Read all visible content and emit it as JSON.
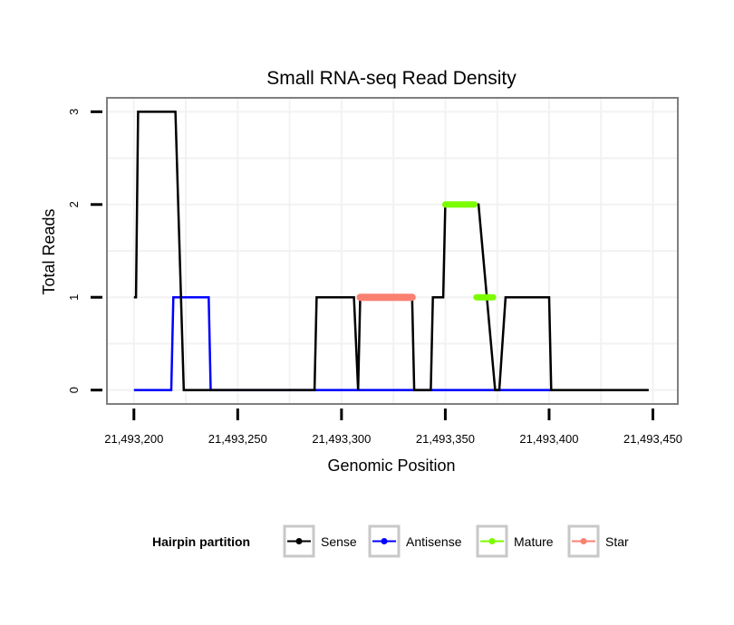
{
  "chart_data": {
    "type": "line",
    "title": "Small RNA-seq Read Density",
    "xlabel": "Genomic Position",
    "ylabel": "Total Reads",
    "xlim": [
      21493187,
      21493462
    ],
    "ylim": [
      -0.15,
      3.15
    ],
    "x_ticks": [
      21493200,
      21493250,
      21493300,
      21493350,
      21493400,
      21493450
    ],
    "x_tick_labels": [
      "21,493,200",
      "21,493,250",
      "21,493,300",
      "21,493,350",
      "21,493,400",
      "21,493,450"
    ],
    "y_ticks": [
      0,
      1,
      2,
      3
    ],
    "y_tick_labels": [
      "0",
      "1",
      "2",
      "3"
    ],
    "grid": true,
    "legend": {
      "title": "Hairpin partition",
      "placement": "bottom",
      "entries": [
        "Sense",
        "Antisense",
        "Mature",
        "Star"
      ]
    },
    "series": [
      {
        "name": "Sense",
        "color": "#000000",
        "x": [
          21493200,
          21493201,
          21493202,
          21493220,
          21493224,
          21493287,
          21493288,
          21493306,
          21493308,
          21493309,
          21493334,
          21493335,
          21493343,
          21493344,
          21493349,
          21493350,
          21493366,
          21493374,
          21493376,
          21493379,
          21493380,
          21493400,
          21493401,
          21493448
        ],
        "y": [
          1,
          1,
          3,
          3,
          0,
          0,
          1,
          1,
          0,
          1,
          1,
          0,
          0,
          1,
          1,
          2,
          2,
          0,
          0,
          1,
          1,
          1,
          0,
          0
        ]
      },
      {
        "name": "Antisense",
        "color": "#0000ff",
        "x": [
          21493200,
          21493218,
          21493219,
          21493236,
          21493237,
          21493401
        ],
        "y": [
          0,
          0,
          1,
          1,
          0,
          0
        ]
      },
      {
        "name": "Mature",
        "color": "#7cfc00",
        "x": [
          21493350,
          21493364,
          null,
          21493365,
          21493373
        ],
        "y": [
          2,
          2,
          null,
          1,
          1
        ]
      },
      {
        "name": "Star",
        "color": "#fa8072",
        "x": [
          21493309,
          21493334
        ],
        "y": [
          1,
          1
        ]
      }
    ]
  }
}
